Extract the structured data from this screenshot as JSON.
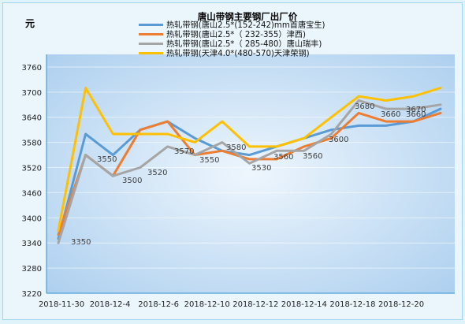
{
  "chart_data": {
    "type": "line",
    "title": "唐山带钢主要钢厂出厂价",
    "ylabel": "元",
    "ylim": [
      3220,
      3790
    ],
    "yticks": [
      3220,
      3280,
      3340,
      3400,
      3460,
      3520,
      3580,
      3640,
      3700,
      3760
    ],
    "x_labels": [
      "2018-11-30",
      "2018-12-4",
      "2018-12-6",
      "2018-12-10",
      "2018-12-12",
      "2018-12-14",
      "2018-12-18",
      "2018-12-20"
    ],
    "legend_position": "top-right",
    "grid": true,
    "series": [
      {
        "name": "热轧带钢(唐山2.5*(152-242)mm首唐宝生)",
        "color": "#5b9bd5",
        "values": [
          3350,
          3600,
          3550,
          3610,
          3630,
          3590,
          3560,
          3550,
          3570,
          3590,
          3610,
          3620,
          3620,
          3630,
          3660
        ]
      },
      {
        "name": "热轧带钢(唐山2.5*（ 232-355）津西)",
        "color": "#ed7d31",
        "values": [
          3360,
          3550,
          3500,
          3610,
          3630,
          3550,
          3560,
          3540,
          3540,
          3570,
          3590,
          3650,
          3630,
          3630,
          3650
        ]
      },
      {
        "name": "热轧带钢(唐山2.5*（ 285-480）唐山瑞丰)",
        "color": "#a5a5a5",
        "values": [
          3340,
          3550,
          3500,
          3520,
          3570,
          3550,
          3580,
          3530,
          3560,
          3560,
          3600,
          3680,
          3660,
          3660,
          3670
        ]
      },
      {
        "name": "热轧带钢(天津4.0*(480-570)天津荣钢)",
        "color": "#ffc000",
        "values": [
          3370,
          3710,
          3600,
          3600,
          3600,
          3580,
          3630,
          3570,
          3570,
          3590,
          3640,
          3690,
          3680,
          3690,
          3710
        ]
      }
    ],
    "annotations": [
      {
        "label": "3350",
        "point": 0
      },
      {
        "label": "3550",
        "point": 2
      },
      {
        "label": "3500",
        "point": 3
      },
      {
        "label": "3520",
        "point": 4
      },
      {
        "label": "3570",
        "point": 6
      },
      {
        "label": "3550",
        "point": 7
      },
      {
        "label": "3580",
        "point": 8
      },
      {
        "label": "3530",
        "point": 9
      },
      {
        "label": "3560",
        "point": 10
      },
      {
        "label": "3560",
        "point": 11
      },
      {
        "label": "3600",
        "point": 12
      },
      {
        "label": "3680",
        "point": 13
      },
      {
        "label": "3660",
        "point": 14
      },
      {
        "label": "3670",
        "point": 16
      },
      {
        "label": "3660",
        "point": 17
      }
    ]
  }
}
